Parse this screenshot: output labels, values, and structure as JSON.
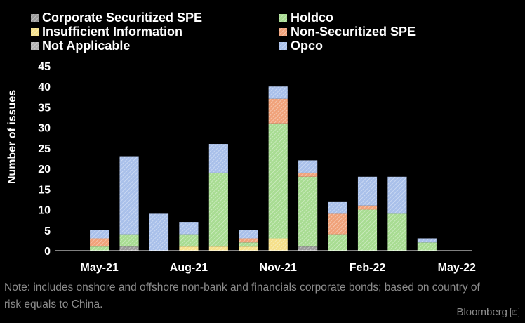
{
  "chart_data": {
    "type": "bar",
    "stacked": true,
    "ylabel": "Number of issues",
    "ylim": [
      0,
      45
    ],
    "yticks": [
      0,
      5,
      10,
      15,
      20,
      25,
      30,
      35,
      40,
      45
    ],
    "categories": [
      "Apr-21",
      "May-21",
      "Jun-21",
      "Jul-21",
      "Aug-21",
      "Sep-21",
      "Oct-21",
      "Nov-21",
      "Dec-21",
      "Jan-22",
      "Feb-22",
      "Mar-22",
      "Apr-22",
      "May-22"
    ],
    "xtick_labels": [
      {
        "category": "May-21",
        "label": "May-21"
      },
      {
        "category": "Aug-21",
        "label": "Aug-21"
      },
      {
        "category": "Nov-21",
        "label": "Nov-21"
      },
      {
        "category": "Feb-22",
        "label": "Feb-22"
      },
      {
        "category": "May-22",
        "label": "May-22"
      }
    ],
    "series": [
      {
        "name": "Corporate Securitized SPE",
        "color": "#9a9a9a",
        "values": [
          0,
          0,
          1,
          0,
          0,
          0,
          0,
          0,
          1,
          0,
          0,
          0,
          0,
          0
        ]
      },
      {
        "name": "Insufficient Information",
        "color": "#f5e08a",
        "values": [
          0,
          0,
          0,
          0,
          1,
          1,
          1,
          3,
          0,
          0,
          0,
          0,
          0,
          0
        ]
      },
      {
        "name": "Not Applicable",
        "color": "#b0b0b0",
        "values": [
          0,
          0,
          0,
          0,
          0,
          0,
          0,
          0,
          0,
          0,
          0,
          0,
          0,
          0
        ]
      },
      {
        "name": "Holdco",
        "color": "#a8dc92",
        "values": [
          0,
          1,
          3,
          0,
          3,
          18,
          1,
          28,
          17,
          4,
          10,
          9,
          2,
          0
        ]
      },
      {
        "name": "Non-Securitized SPE",
        "color": "#f0a27a",
        "values": [
          0,
          2,
          0,
          0,
          0,
          0,
          1,
          6,
          1,
          5,
          1,
          0,
          0,
          0
        ]
      },
      {
        "name": "Opco",
        "color": "#a9c0ea",
        "values": [
          0,
          2,
          19,
          9,
          3,
          7,
          2,
          3,
          3,
          3,
          7,
          9,
          1,
          0
        ]
      }
    ]
  },
  "note": "Note: includes onshore and offshore non-bank and financials corporate bonds; based on country of risk equals to China.",
  "brand": "Bloomberg"
}
